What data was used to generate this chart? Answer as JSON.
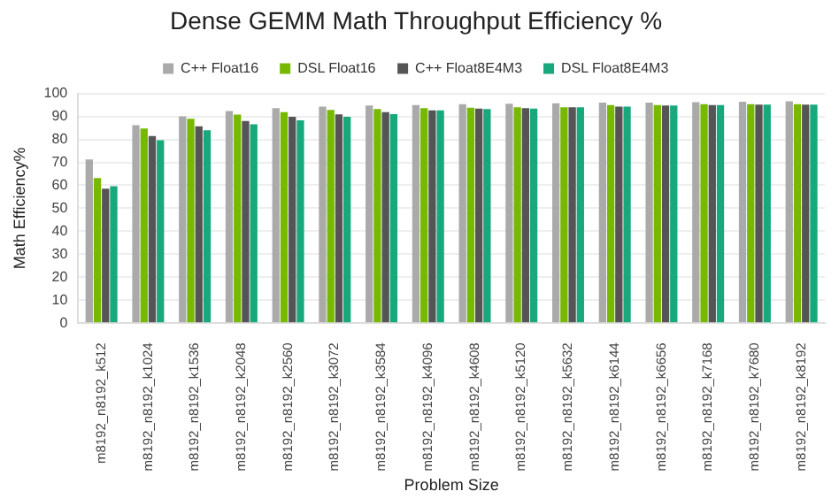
{
  "chart_data": {
    "type": "bar",
    "title": "Dense GEMM Math Throughput Efficiency %",
    "xlabel": "Problem Size",
    "ylabel": "Math Efficiency%",
    "categories": [
      "m8192_n8192_k512",
      "m8192_n8192_k1024",
      "m8192_n8192_k1536",
      "m8192_n8192_k2048",
      "m8192_n8192_k2560",
      "m8192_n8192_k3072",
      "m8192_n8192_k3584",
      "m8192_n8192_k4096",
      "m8192_n8192_k4608",
      "m8192_n8192_k5120",
      "m8192_n8192_k5632",
      "m8192_n8192_k6144",
      "m8192_n8192_k6656",
      "m8192_n8192_k7168",
      "m8192_n8192_k7680",
      "m8192_n8192_k8192"
    ],
    "series": [
      {
        "name": "C++ Float16",
        "color": "#aaaaaa",
        "values": [
          71.3,
          86.2,
          90,
          92.3,
          93.6,
          94.3,
          94.7,
          94.9,
          95.3,
          95.5,
          95.7,
          96,
          96,
          96.2,
          96.4,
          96.6
        ]
      },
      {
        "name": "DSL Float16",
        "color": "#76b900",
        "values": [
          63.2,
          84.7,
          89,
          90.8,
          91.9,
          92.8,
          93.2,
          93.6,
          93.8,
          94,
          94,
          94.9,
          94.9,
          95.3,
          95.3,
          95.3
        ]
      },
      {
        "name": "C++ Float8E4M3",
        "color": "#555555",
        "values": [
          58.5,
          81.5,
          85.7,
          88,
          89.8,
          90.9,
          91.9,
          92.6,
          93.4,
          93.6,
          94,
          94.3,
          94.7,
          94.9,
          95.1,
          95.1
        ]
      },
      {
        "name": "DSL Float8E4M3",
        "color": "#17a87b",
        "values": [
          59.6,
          79.6,
          84,
          86.6,
          88.3,
          89.8,
          91,
          92.6,
          93.2,
          93.4,
          94,
          94.3,
          94.7,
          94.9,
          95.1,
          95.1
        ]
      }
    ],
    "ylim": [
      0,
      100
    ],
    "yticks": [
      0,
      10,
      20,
      30,
      40,
      50,
      60,
      70,
      80,
      90,
      100
    ],
    "grid": "y",
    "legend": "top"
  }
}
